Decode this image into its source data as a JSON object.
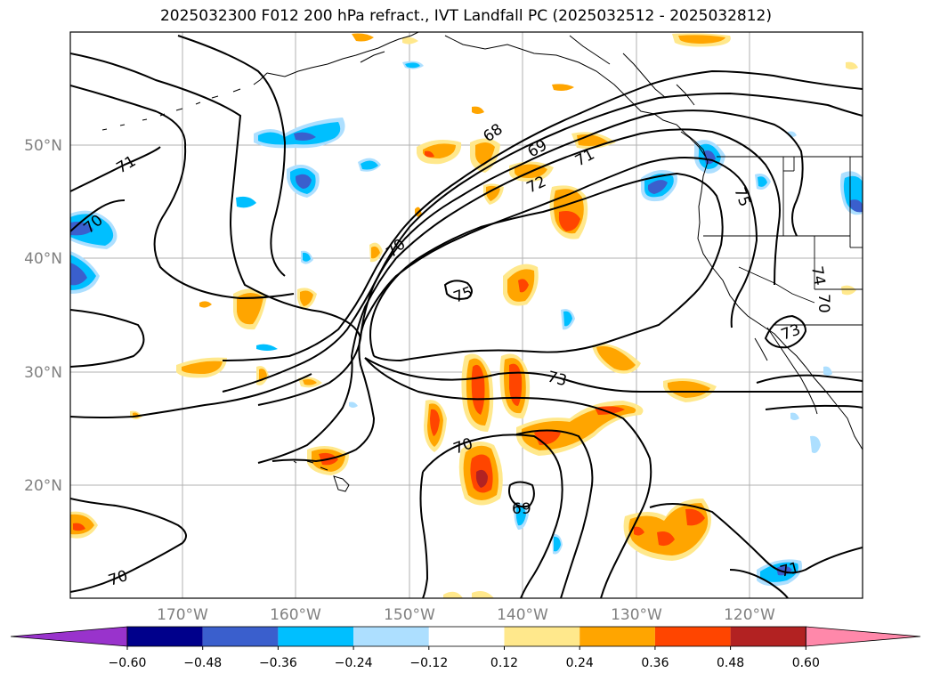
{
  "title": "2025032300 F012 200 hPa refract., IVT Landfall PC (2025032512 - 2025032812)",
  "lat_labels": [
    "50°N",
    "40°N",
    "30°N",
    "20°N"
  ],
  "lon_labels": [
    "170°W",
    "160°W",
    "150°W",
    "140°W",
    "130°W",
    "120°W"
  ],
  "contour_labels": [
    "68",
    "69",
    "71",
    "72",
    "71",
    "70",
    "70",
    "70",
    "75",
    "73",
    "70",
    "69",
    "70",
    "71",
    "75",
    "74",
    "73"
  ],
  "colorbar": {
    "tick_labels": [
      "−0.60",
      "−0.48",
      "−0.36",
      "−0.24",
      "−0.12",
      "0.12",
      "0.24",
      "0.36",
      "0.48",
      "0.60"
    ],
    "colors": [
      "#9933cc",
      "#00008b",
      "#3a5fcd",
      "#00bfff",
      "#addfff",
      "#ffffff",
      "#ffe88c",
      "#ffa500",
      "#ff4500",
      "#b22222",
      "#ff88aa"
    ]
  }
}
